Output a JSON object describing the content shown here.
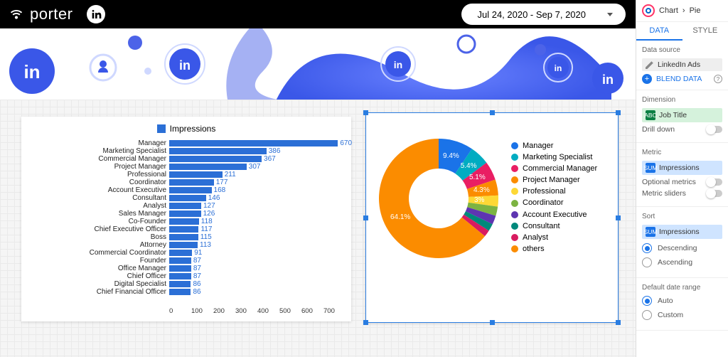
{
  "header": {
    "brand": "porter",
    "date_range": "Jul 24, 2020 - Sep 7, 2020",
    "brand_color": "#ffffff",
    "topbar_bg": "#000000"
  },
  "banner": {
    "accent_colors": [
      "#3a57e8",
      "#5b72f2",
      "#7b8ff7",
      "#1da1f2"
    ]
  },
  "bar_chart": {
    "type": "bar-horizontal",
    "legend_label": "Impressions",
    "bar_color": "#2b6fd6",
    "value_color": "#2b6fd6",
    "background": "#ffffff",
    "xlim": [
      0,
      700
    ],
    "xtick_step": 100,
    "label_fontsize": 10,
    "xticks": [
      "0",
      "100",
      "200",
      "300",
      "400",
      "500",
      "600",
      "700"
    ],
    "rows": [
      {
        "label": "Manager",
        "value": 670
      },
      {
        "label": "Marketing Specialist",
        "value": 386
      },
      {
        "label": "Commercial Manager",
        "value": 367
      },
      {
        "label": "Project Manager",
        "value": 307
      },
      {
        "label": "Professional",
        "value": 211
      },
      {
        "label": "Coordinator",
        "value": 177
      },
      {
        "label": "Account Executive",
        "value": 168
      },
      {
        "label": "Consultant",
        "value": 146
      },
      {
        "label": "Analyst",
        "value": 127
      },
      {
        "label": "Sales Manager",
        "value": 126
      },
      {
        "label": "Co-Founder",
        "value": 118
      },
      {
        "label": "Chief Executive Officer",
        "value": 117
      },
      {
        "label": "Boss",
        "value": 115
      },
      {
        "label": "Attorney",
        "value": 113
      },
      {
        "label": "Commercial Coordinator",
        "value": 91
      },
      {
        "label": "Founder",
        "value": 87
      },
      {
        "label": "Office Manager",
        "value": 87
      },
      {
        "label": "Chief Officer",
        "value": 87
      },
      {
        "label": "Digital Specialist",
        "value": 86
      },
      {
        "label": "Chief Financial Officer",
        "value": 86
      }
    ]
  },
  "pie_chart": {
    "type": "donut",
    "background": "#ffffff",
    "inner_radius_pct": 46,
    "selected_border": "#2a7de1",
    "slices": [
      {
        "label": "Manager",
        "pct": 9.4,
        "color": "#1a73e8",
        "show_pct": true
      },
      {
        "label": "Marketing Specialist",
        "pct": 5.4,
        "color": "#00acc1",
        "show_pct": true
      },
      {
        "label": "Commercial Manager",
        "pct": 5.1,
        "color": "#e91e63",
        "show_pct": true
      },
      {
        "label": "Project Manager",
        "pct": 4.3,
        "color": "#fb8c00",
        "show_pct": true
      },
      {
        "label": "Professional",
        "pct": 3.0,
        "color": "#fdd835",
        "show_pct": true
      },
      {
        "label": "Coordinator",
        "pct": 2.5,
        "color": "#7cb342",
        "show_pct": false
      },
      {
        "label": "Account Executive",
        "pct": 2.4,
        "color": "#5e35b1",
        "show_pct": false
      },
      {
        "label": "Consultant",
        "pct": 2.0,
        "color": "#00897b",
        "show_pct": false
      },
      {
        "label": "Analyst",
        "pct": 1.8,
        "color": "#d81b60",
        "show_pct": false
      },
      {
        "label": "others",
        "pct": 64.1,
        "color": "#fb8c00",
        "show_pct": true
      }
    ]
  },
  "sidebar": {
    "crumb1": "Chart",
    "crumb2": "Pie",
    "tabs": {
      "data": "DATA",
      "style": "STYLE"
    },
    "data_source": {
      "title": "Data source",
      "source_name": "LinkedIn Ads",
      "blend": "BLEND DATA"
    },
    "dimension": {
      "title": "Dimension",
      "chip_prefix": "ABC",
      "value": "Job Title",
      "drill": "Drill down"
    },
    "metric": {
      "title": "Metric",
      "chip_prefix": "SUM",
      "value": "Impressions",
      "optional": "Optional metrics",
      "sliders": "Metric sliders"
    },
    "sort": {
      "title": "Sort",
      "chip_prefix": "SUM",
      "chip_value": "Impressions",
      "opt_desc": "Descending",
      "opt_asc": "Ascending"
    },
    "date_range": {
      "title": "Default date range",
      "opt_auto": "Auto",
      "opt_custom": "Custom"
    }
  }
}
